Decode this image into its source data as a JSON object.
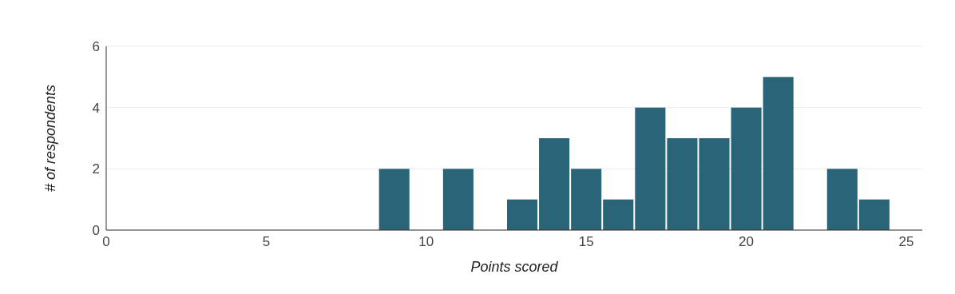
{
  "chart_data": {
    "type": "histogram",
    "xlabel": "Points scored",
    "ylabel": "# of respondents",
    "bins": [
      8.5,
      9.5,
      10.5,
      11.5,
      12.5,
      13.5,
      14.5,
      15.5,
      16.5,
      17.5,
      18.5,
      19.5,
      20.5,
      21.5,
      22.5,
      23.5,
      24.5
    ],
    "values": [
      2,
      0,
      2,
      0,
      1,
      3,
      2,
      1,
      4,
      3,
      3,
      4,
      5,
      0,
      2,
      1
    ],
    "color": "#2a6478",
    "xlim": [
      0,
      25.5
    ],
    "xticks": [
      0,
      5,
      10,
      15,
      20,
      25
    ],
    "ylim": [
      0,
      6
    ],
    "yticks": [
      0,
      2,
      4,
      6
    ],
    "grid": "y"
  }
}
